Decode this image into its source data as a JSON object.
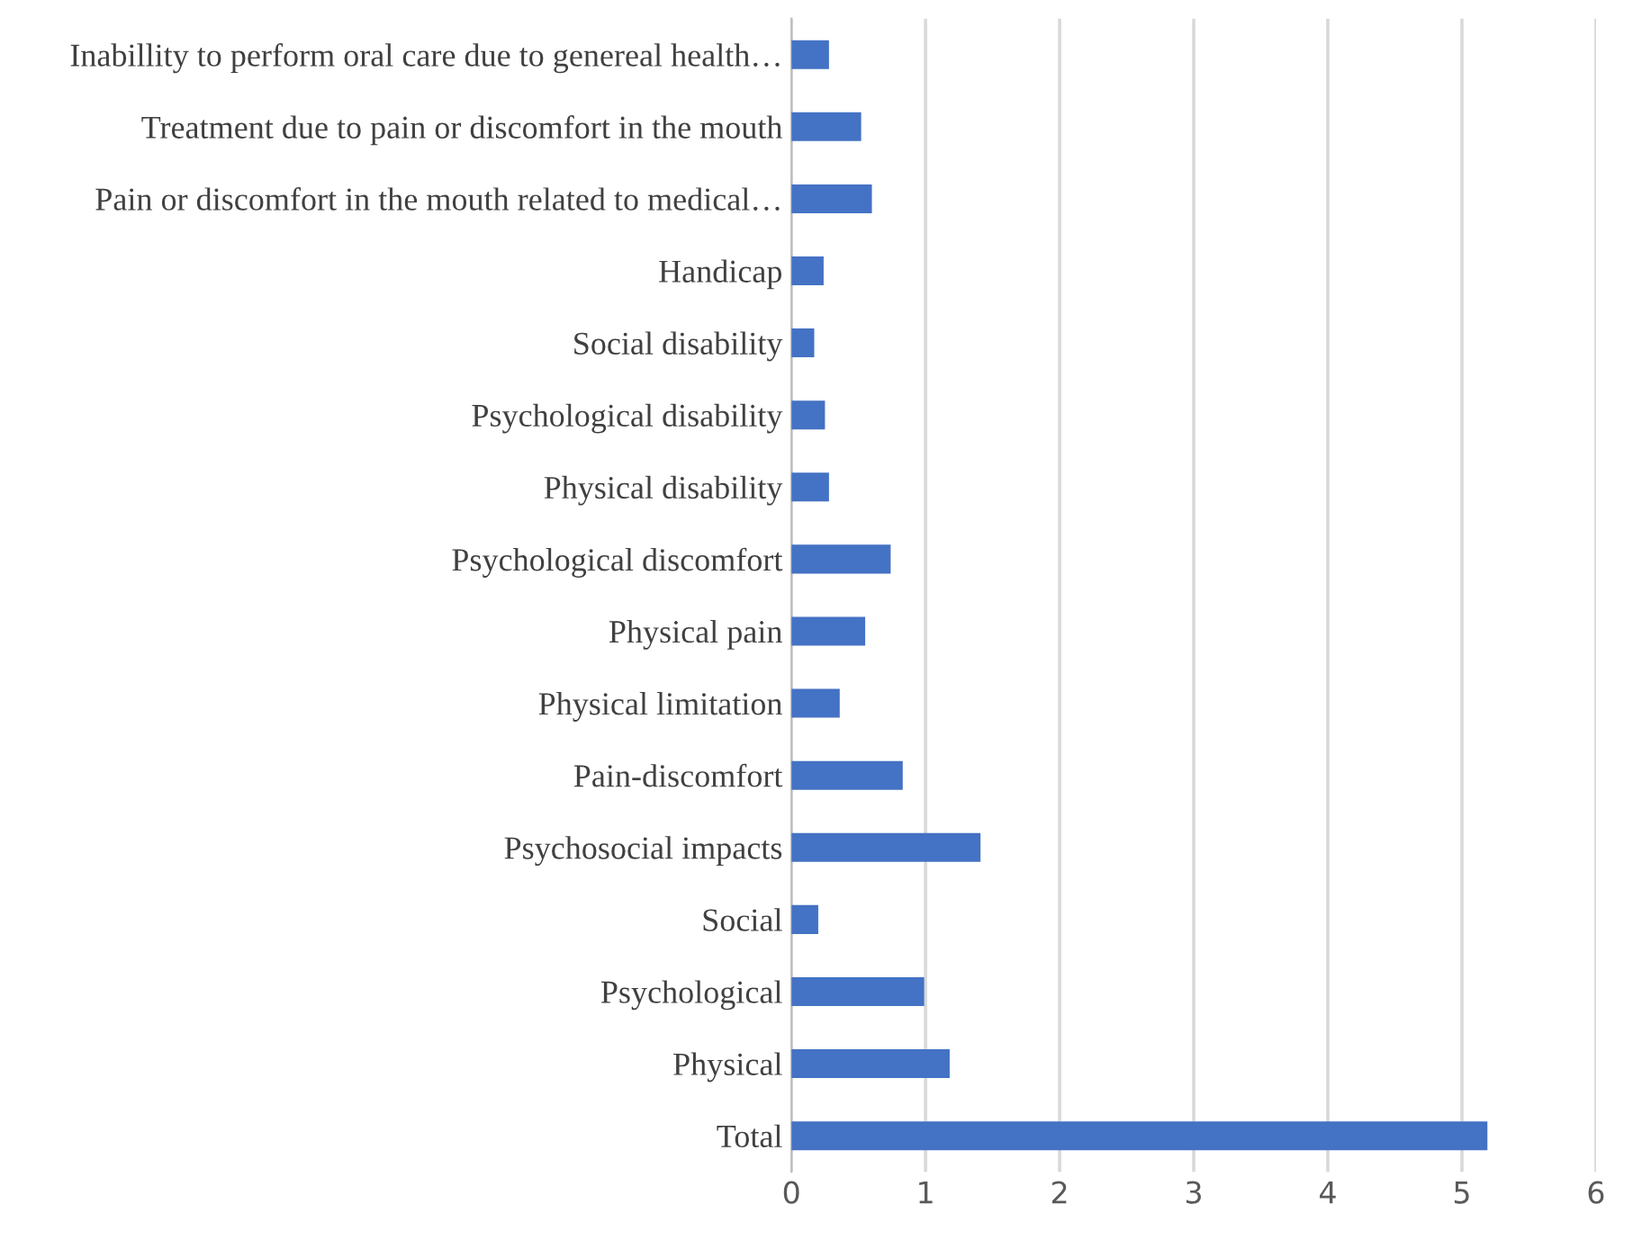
{
  "chart_data": {
    "type": "bar",
    "orientation": "horizontal",
    "color": "#4472c4",
    "categories": [
      "Inabillity to perform oral care due to genereal health…",
      "Treatment due to pain or discomfort in the mouth",
      "Pain or discomfort in the mouth related to medical…",
      "Handicap",
      "Social disability",
      "Psychological disability",
      "Physical disability",
      "Psychological discomfort",
      "Physical pain",
      "Physical limitation",
      "Pain-discomfort",
      "Psychosocial impacts",
      "Social",
      "Psychological",
      "Physical",
      "Total"
    ],
    "values": [
      0.28,
      0.52,
      0.6,
      0.24,
      0.17,
      0.25,
      0.28,
      0.74,
      0.55,
      0.36,
      0.83,
      1.41,
      0.2,
      0.99,
      1.18,
      5.19
    ],
    "xlim": [
      0,
      6
    ],
    "xticks": [
      0,
      1,
      2,
      3,
      4,
      5,
      6
    ],
    "grid": "x"
  }
}
